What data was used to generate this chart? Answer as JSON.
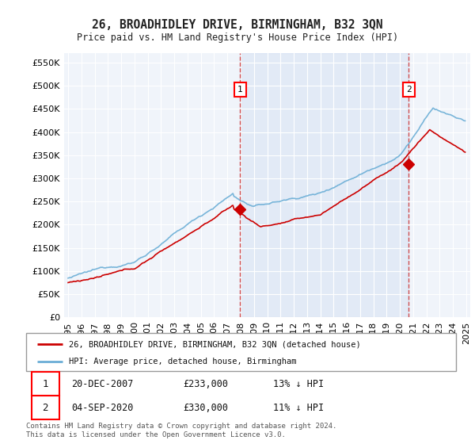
{
  "title": "26, BROADHIDLEY DRIVE, BIRMINGHAM, B32 3QN",
  "subtitle": "Price paid vs. HM Land Registry's House Price Index (HPI)",
  "ytick_vals": [
    0,
    50000,
    100000,
    150000,
    200000,
    250000,
    300000,
    350000,
    400000,
    450000,
    500000,
    550000
  ],
  "ylim": [
    0,
    570000
  ],
  "year_start": 1995,
  "year_end": 2025,
  "hpi_color": "#6baed6",
  "price_color": "#cc0000",
  "shade_color": "#ddeeff",
  "marker1_date": 2007.97,
  "marker1_price": 233000,
  "marker2_date": 2020.67,
  "marker2_price": 330000,
  "legend_label1": "26, BROADHIDLEY DRIVE, BIRMINGHAM, B32 3QN (detached house)",
  "legend_label2": "HPI: Average price, detached house, Birmingham",
  "table_row1": [
    "1",
    "20-DEC-2007",
    "£233,000",
    "13% ↓ HPI"
  ],
  "table_row2": [
    "2",
    "04-SEP-2020",
    "£330,000",
    "11% ↓ HPI"
  ],
  "footnote": "Contains HM Land Registry data © Crown copyright and database right 2024.\nThis data is licensed under the Open Government Licence v3.0.",
  "bg_color": "#ffffff",
  "plot_bg": "#f0f4fa"
}
